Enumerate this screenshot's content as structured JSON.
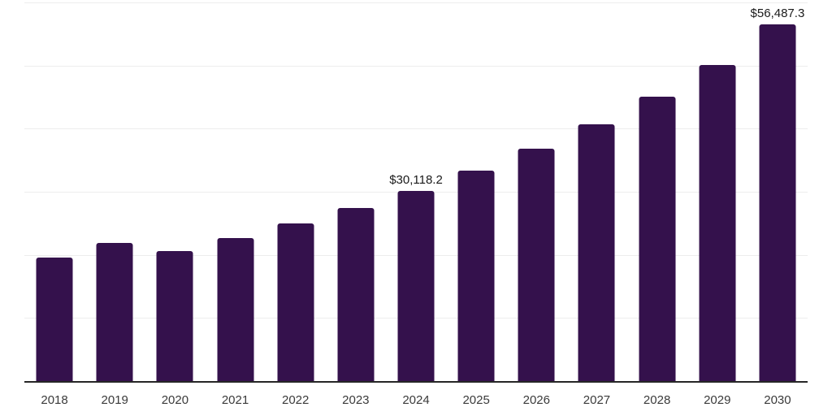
{
  "chart_data": {
    "type": "bar",
    "title": "",
    "xlabel": "",
    "ylabel": "",
    "categories": [
      "2018",
      "2019",
      "2020",
      "2021",
      "2022",
      "2023",
      "2024",
      "2025",
      "2026",
      "2027",
      "2028",
      "2029",
      "2030"
    ],
    "values": [
      19600,
      21900,
      20550,
      22700,
      25000,
      27400,
      30118.2,
      33400,
      36850,
      40700,
      45100,
      50100,
      56487.3
    ],
    "value_labels": [
      "",
      "",
      "",
      "",
      "",
      "",
      "$30,118.2",
      "",
      "",
      "",
      "",
      "",
      "$56,487.3"
    ],
    "ylim": [
      0,
      60000
    ],
    "grid_interval": 10000,
    "grid": "horizontal",
    "legend": "none"
  },
  "colors": {
    "background": "#ffffff",
    "bar": "#34114C",
    "gridline": "#ededed",
    "axis_line": "#262626",
    "tick_label": "#3a3a3a",
    "value_label": "#1a1a1a"
  }
}
